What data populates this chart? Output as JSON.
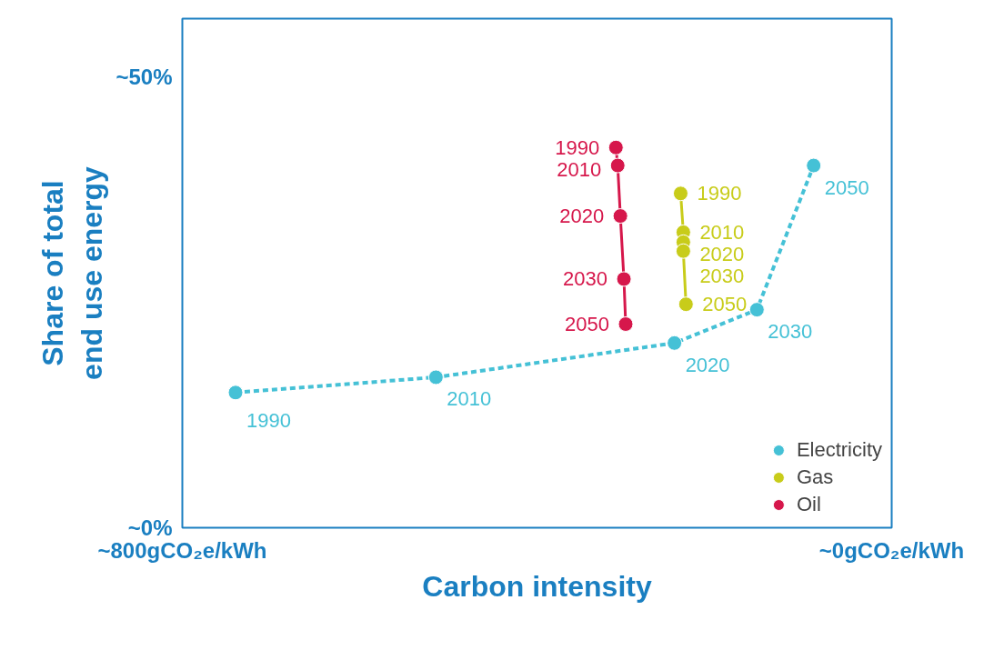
{
  "chart_data": {
    "type": "line",
    "xlabel": "Carbon intensity",
    "ylabel": "Share of total\nend use energy",
    "xlim": [
      800,
      0
    ],
    "xticks": [
      {
        "value": 800,
        "label": "~800gCO₂e/kWh"
      },
      {
        "value": 0,
        "label": "~0gCO₂e/kWh"
      }
    ],
    "ylim": [
      0,
      56.5
    ],
    "yticks": [
      {
        "value": 0,
        "label": "~0%"
      },
      {
        "value": 50,
        "label": "~50%"
      }
    ],
    "marker": "circle",
    "legend": "bottom right",
    "grid": false,
    "series": [
      {
        "name": "Electricity",
        "color": "#45c1d6",
        "line_style": "dashed",
        "x": [
          740,
          514,
          245,
          152,
          88
        ],
        "values": [
          15.0,
          16.7,
          20.5,
          24.2,
          40.2
        ]
      },
      {
        "name": "Gas",
        "color": "#c8cc1a",
        "line_style": "solid",
        "x": [
          238,
          235,
          235,
          235,
          232
        ],
        "values": [
          37.1,
          32.8,
          31.7,
          30.7,
          24.8
        ]
      },
      {
        "name": "Oil",
        "color": "#d6174b",
        "line_style": "solid",
        "x": [
          311,
          309,
          306,
          302,
          300
        ],
        "values": [
          42.2,
          40.2,
          34.6,
          27.6,
          22.6
        ]
      }
    ],
    "annotations": [
      {
        "text": "1990",
        "x": 740,
        "y": 15.0
      },
      {
        "text": "2010",
        "x": 514,
        "y": 16.7
      },
      {
        "text": "2020",
        "x": 245,
        "y": 20.5
      },
      {
        "text": "2030",
        "x": 152,
        "y": 24.2
      },
      {
        "text": "2050",
        "x": 88,
        "y": 40.2
      },
      {
        "text": "1990",
        "x": 238,
        "y": 37.1
      },
      {
        "text": "2010",
        "x": 235,
        "y": 32.8
      },
      {
        "text": "2020",
        "x": 235,
        "y": 31.7
      },
      {
        "text": "2030",
        "x": 235,
        "y": 30.7
      },
      {
        "text": "2050",
        "x": 232,
        "y": 24.8
      },
      {
        "text": "1990",
        "x": 311,
        "y": 42.2
      },
      {
        "text": "2010",
        "x": 309,
        "y": 40.2
      },
      {
        "text": "2020",
        "x": 306,
        "y": 34.6
      },
      {
        "text": "2030",
        "x": 302,
        "y": 27.6
      },
      {
        "text": "2050",
        "x": 300,
        "y": 22.6
      }
    ]
  }
}
